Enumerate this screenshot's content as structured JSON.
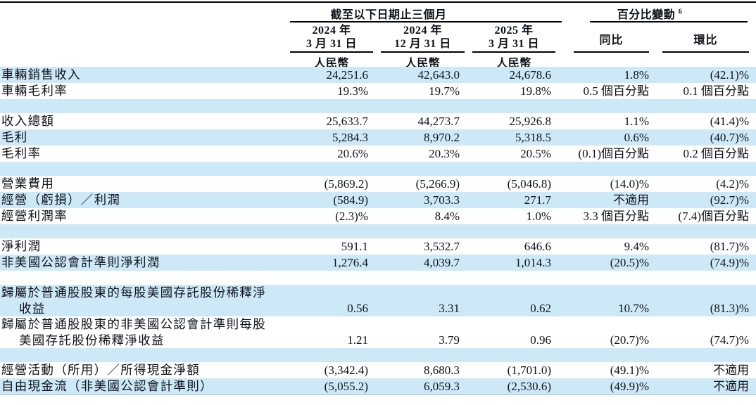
{
  "colors": {
    "row_shade": "#cde9f8",
    "rule": "#000000"
  },
  "header": {
    "period_group": "截至以下日期止三個月",
    "change_group": "百分比變動",
    "change_group_sup": "6",
    "col1_year": "2024 年",
    "col1_date": "3 月 31 日",
    "col2_year": "2024 年",
    "col2_date": "12 月 31 日",
    "col3_year": "2025 年",
    "col3_date": "3 月 31 日",
    "yoy": "同比",
    "qoq": "環比",
    "currency": "人民幣"
  },
  "table": {
    "rows": [
      {
        "label": "車輛銷售收入",
        "values": [
          "24,251.6",
          "42,643.0",
          "24,678.6",
          "1.8%",
          "(42.1)%"
        ],
        "shaded": true
      },
      {
        "label": "車輛毛利率",
        "values": [
          "19.3%",
          "19.7%",
          "19.8%",
          "0.5 個百分點",
          "0.1 個百分點"
        ],
        "shaded": false
      },
      {
        "spacer": true,
        "shaded": true
      },
      {
        "label": "收入總額",
        "values": [
          "25,633.7",
          "44,273.7",
          "25,926.8",
          "1.1%",
          "(41.4)%"
        ],
        "shaded": false
      },
      {
        "label": "毛利",
        "values": [
          "5,284.3",
          "8,970.2",
          "5,318.5",
          "0.6%",
          "(40.7)%"
        ],
        "shaded": true
      },
      {
        "label": "毛利率",
        "values": [
          "20.6%",
          "20.3%",
          "20.5%",
          "(0.1)個百分點",
          "0.2 個百分點"
        ],
        "shaded": false
      },
      {
        "spacer": true,
        "shaded": true
      },
      {
        "label": "營業費用",
        "values": [
          "(5,869.2)",
          "(5,266.9)",
          "(5,046.8)",
          "(14.0)%",
          "(4.2)%"
        ],
        "shaded": false
      },
      {
        "label": "經營（虧損）／利潤",
        "values": [
          "(584.9)",
          "3,703.3",
          "271.7",
          "不適用",
          "(92.7)%"
        ],
        "shaded": true
      },
      {
        "label": "經營利潤率",
        "values": [
          "(2.3)%",
          "8.4%",
          "1.0%",
          "3.3 個百分點",
          "(7.4)個百分點"
        ],
        "shaded": false
      },
      {
        "spacer": true,
        "shaded": true
      },
      {
        "label": "淨利潤",
        "values": [
          "591.1",
          "3,532.7",
          "646.6",
          "9.4%",
          "(81.7)%"
        ],
        "shaded": false
      },
      {
        "label": "非美國公認會計準則淨利潤",
        "values": [
          "1,276.4",
          "4,039.7",
          "1,014.3",
          "(20.5)%",
          "(74.9)%"
        ],
        "shaded": true
      },
      {
        "spacer": true,
        "shaded": false
      },
      {
        "label_lines": [
          "歸屬於普通股股東的每股美國存託股份稀釋淨",
          "收益"
        ],
        "values": [
          "0.56",
          "3.31",
          "0.62",
          "10.7%",
          "(81.3)%"
        ],
        "shaded": true
      },
      {
        "label_lines": [
          "歸屬於普通股股東的非美國公認會計準則每股",
          "美國存託股份稀釋淨收益"
        ],
        "values": [
          "1.21",
          "3.79",
          "0.96",
          "(20.7)%",
          "(74.7)%"
        ],
        "shaded": false
      },
      {
        "spacer": true,
        "shaded": true
      },
      {
        "label": "經營活動（所用）／所得現金淨額",
        "values": [
          "(3,342.4)",
          "8,680.3",
          "(1,701.0)",
          "(49.1)%",
          "不適用"
        ],
        "shaded": false
      },
      {
        "label": "自由現金流（非美國公認會計準則）",
        "values": [
          "(5,055.2)",
          "6,059.3",
          "(2,530.6)",
          "(49.9)%",
          "不適用"
        ],
        "shaded": true,
        "last": true
      }
    ]
  }
}
